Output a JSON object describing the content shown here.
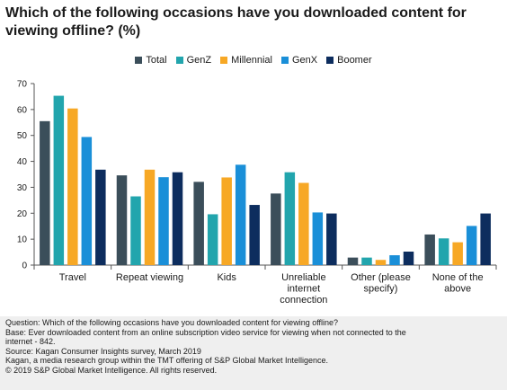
{
  "title": "Which of the following occasions have you downloaded content for viewing offline? (%)",
  "chart_data": {
    "type": "bar",
    "categories": [
      [
        "Travel"
      ],
      [
        "Repeat viewing"
      ],
      [
        "Kids"
      ],
      [
        "Unreliable",
        "internet",
        "connection"
      ],
      [
        "Other (please",
        "specify)"
      ],
      [
        "None of the",
        "above"
      ]
    ],
    "series": [
      {
        "name": "Total",
        "color": "#3b4e5a",
        "values": [
          55.5,
          34.6,
          32.1,
          27.6,
          2.9,
          11.8
        ]
      },
      {
        "name": "GenZ",
        "color": "#22a5ad",
        "values": [
          65.3,
          26.5,
          19.6,
          35.8,
          2.9,
          10.3
        ]
      },
      {
        "name": "Millennial",
        "color": "#f7a825",
        "values": [
          60.4,
          36.8,
          33.8,
          31.7,
          2.0,
          8.8
        ]
      },
      {
        "name": "GenX",
        "color": "#1a8fd8",
        "values": [
          49.4,
          33.9,
          38.7,
          20.3,
          3.8,
          15.1
        ]
      },
      {
        "name": "Boomer",
        "color": "#0d2d5e",
        "values": [
          36.8,
          35.8,
          23.2,
          19.9,
          5.2,
          19.9
        ]
      }
    ],
    "ylim": [
      0,
      70
    ],
    "yticks": [
      "0",
      "10",
      "20",
      "30",
      "40",
      "50",
      "60",
      "70"
    ],
    "grid": false,
    "legend_position": "top"
  },
  "footer": {
    "question": "Question: Which of the following occasions have you downloaded content for viewing offline?",
    "base": "Base: Ever downloaded content from an online subscription video service for viewing when not connected to the\ninternet - 842.",
    "source": "Source: Kagan Consumer Insights survey, March 2019",
    "kagan": "Kagan, a media research group within the TMT offering of S&P Global Market Intelligence.",
    "copyright": "© 2019 S&P Global Market Intelligence. All rights reserved."
  }
}
